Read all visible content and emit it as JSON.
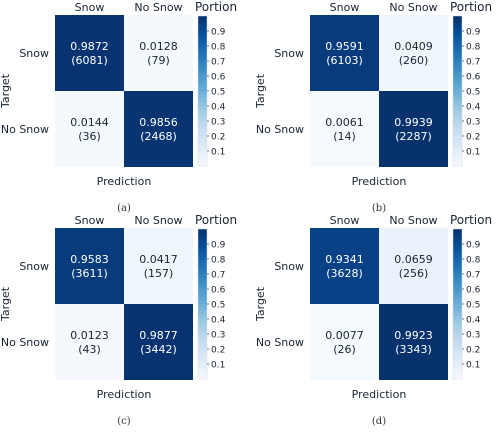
{
  "chart_data": [
    {
      "type": "heatmap",
      "caption": "(a)",
      "classes": [
        "Snow",
        "No Snow"
      ],
      "xlabel": "Prediction",
      "ylabel": "Target",
      "colorbar_label": "Portion",
      "colorbar_ticks": [
        "0.9",
        "0.8",
        "0.7",
        "0.6",
        "0.5",
        "0.4",
        "0.3",
        "0.2",
        "0.1"
      ],
      "portions": [
        [
          0.9872,
          0.0128
        ],
        [
          0.0144,
          0.9856
        ]
      ],
      "portion_labels": [
        [
          "0.9872",
          "0.0128"
        ],
        [
          "0.0144",
          "0.9856"
        ]
      ],
      "counts": [
        [
          "(6081)",
          "(79)"
        ],
        [
          "(36)",
          "(2468)"
        ]
      ]
    },
    {
      "type": "heatmap",
      "caption": "(b)",
      "classes": [
        "Snow",
        "No Snow"
      ],
      "xlabel": "Prediction",
      "ylabel": "Target",
      "colorbar_label": "Portion",
      "colorbar_ticks": [
        "0.9",
        "0.8",
        "0.7",
        "0.6",
        "0.5",
        "0.4",
        "0.3",
        "0.2",
        "0.1"
      ],
      "portions": [
        [
          0.9591,
          0.0409
        ],
        [
          0.0061,
          0.9939
        ]
      ],
      "portion_labels": [
        [
          "0.9591",
          "0.0409"
        ],
        [
          "0.0061",
          "0.9939"
        ]
      ],
      "counts": [
        [
          "(6103)",
          "(260)"
        ],
        [
          "(14)",
          "(2287)"
        ]
      ]
    },
    {
      "type": "heatmap",
      "caption": "(c)",
      "classes": [
        "Snow",
        "No Snow"
      ],
      "xlabel": "Prediction",
      "ylabel": "Target",
      "colorbar_label": "Portion",
      "colorbar_ticks": [
        "0.9",
        "0.8",
        "0.7",
        "0.6",
        "0.5",
        "0.4",
        "0.3",
        "0.2",
        "0.1"
      ],
      "portions": [
        [
          0.9583,
          0.0417
        ],
        [
          0.0123,
          0.9877
        ]
      ],
      "portion_labels": [
        [
          "0.9583",
          "0.0417"
        ],
        [
          "0.0123",
          "0.9877"
        ]
      ],
      "counts": [
        [
          "(3611)",
          "(157)"
        ],
        [
          "(43)",
          "(3442)"
        ]
      ]
    },
    {
      "type": "heatmap",
      "caption": "(d)",
      "classes": [
        "Snow",
        "No Snow"
      ],
      "xlabel": "Prediction",
      "ylabel": "Target",
      "colorbar_label": "Portion",
      "colorbar_ticks": [
        "0.9",
        "0.8",
        "0.7",
        "0.6",
        "0.5",
        "0.4",
        "0.3",
        "0.2",
        "0.1"
      ],
      "portions": [
        [
          0.9341,
          0.0659
        ],
        [
          0.0077,
          0.9923
        ]
      ],
      "portion_labels": [
        [
          "0.9341",
          "0.0659"
        ],
        [
          "0.0077",
          "0.9923"
        ]
      ],
      "counts": [
        [
          "(3628)",
          "(256)"
        ],
        [
          "(26)",
          "(3343)"
        ]
      ]
    }
  ],
  "colors": {
    "low": "#f7fbff",
    "high": "#08306b",
    "text_dark": "#1a2433",
    "text_light": "#ffffff"
  }
}
